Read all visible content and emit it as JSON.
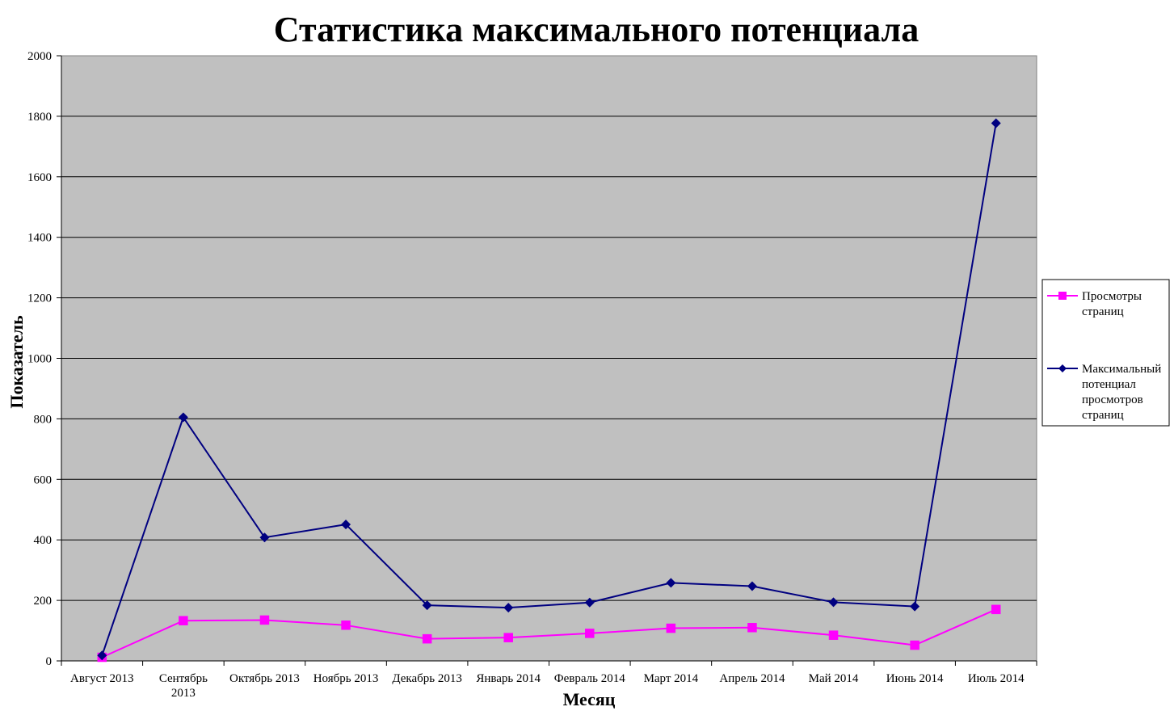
{
  "chart_data": {
    "type": "line",
    "title": "Статистика максимального потенциала",
    "xlabel": "Месяц",
    "ylabel": "Показатель",
    "ylim": [
      0,
      2000
    ],
    "yticks": [
      0,
      200,
      400,
      600,
      800,
      1000,
      1200,
      1400,
      1600,
      1800,
      2000
    ],
    "grid": true,
    "legend_position": "right",
    "plot_background": "#c0c0c0",
    "categories": [
      [
        "Август 2013"
      ],
      [
        "Сентябрь",
        "2013"
      ],
      [
        "Октябрь 2013"
      ],
      [
        "Ноябрь 2013"
      ],
      [
        "Декабрь 2013"
      ],
      [
        "Январь 2014"
      ],
      [
        "Февраль 2014"
      ],
      [
        "Март 2014"
      ],
      [
        "Апрель 2014"
      ],
      [
        "Май 2014"
      ],
      [
        "Июнь 2014"
      ],
      [
        "Июль 2014"
      ]
    ],
    "series": [
      {
        "name_lines": [
          "Просмотры",
          "страниц"
        ],
        "color": "#ff00ff",
        "marker": "square",
        "values": [
          12,
          133,
          135,
          118,
          73,
          77,
          91,
          108,
          110,
          85,
          52,
          170
        ]
      },
      {
        "name_lines": [
          "Максимальный",
          "потенциал",
          "просмотров",
          "страниц"
        ],
        "color": "#000080",
        "marker": "diamond",
        "values": [
          18,
          805,
          408,
          451,
          184,
          176,
          193,
          258,
          247,
          194,
          180,
          1777
        ]
      }
    ]
  }
}
